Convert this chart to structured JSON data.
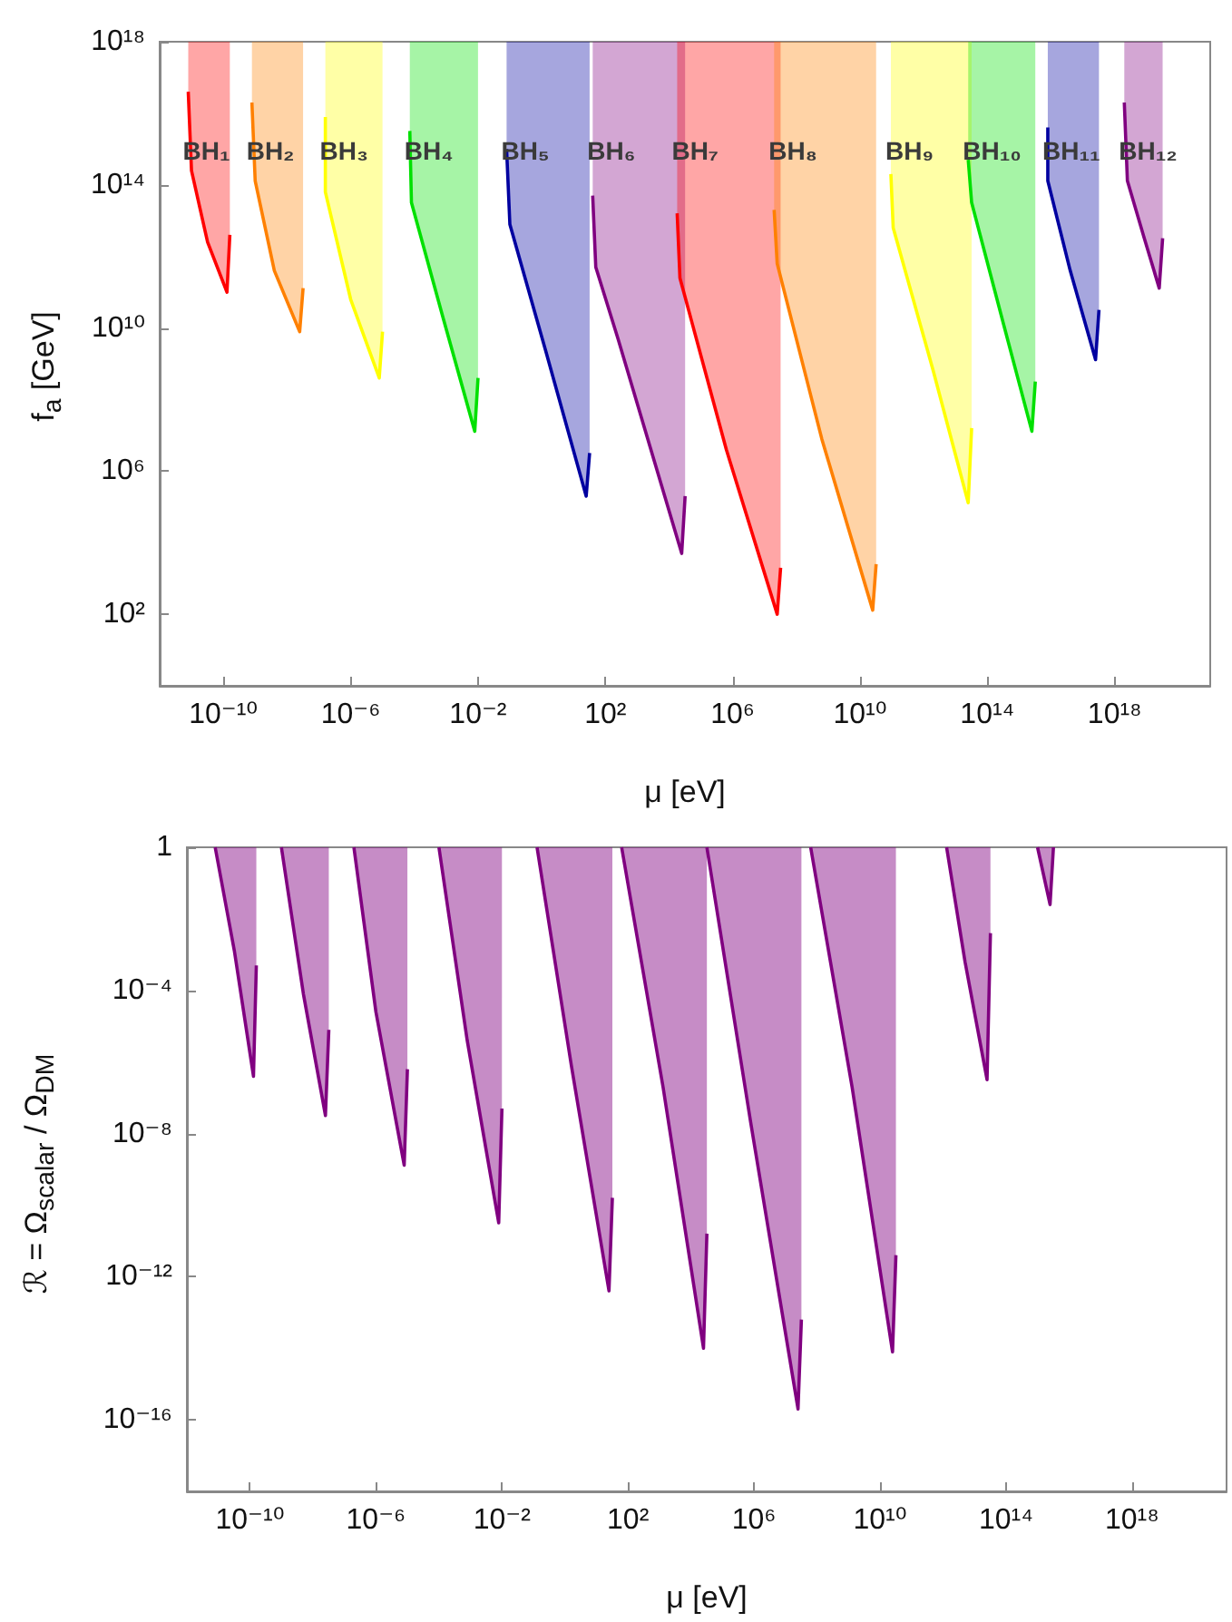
{
  "chart_data": [
    {
      "type": "line",
      "xlabel": "μ [eV]",
      "ylabel": "f$_{a}$ [GeV]",
      "log": "xy",
      "xlim": [
        1e-12,
        1e+21
      ],
      "ylim": [
        1,
        1e+18
      ],
      "grid": false,
      "marker": "none",
      "line_style": "solid",
      "xticks": [
        {
          "value": 1e-10,
          "label": "10⁻¹⁰"
        },
        {
          "value": 1e-06,
          "label": "10⁻⁶"
        },
        {
          "value": 0.01,
          "label": "10⁻²"
        },
        {
          "value": 100,
          "label": "10²"
        },
        {
          "value": 1000000.0,
          "label": "10⁶"
        },
        {
          "value": 10000000000.0,
          "label": "10¹⁰"
        },
        {
          "value": 100000000000000.0,
          "label": "10¹⁴"
        },
        {
          "value": 1e+18,
          "label": "10¹⁸"
        }
      ],
      "yticks": [
        {
          "value": 100,
          "label": "10²"
        },
        {
          "value": 1000000.0,
          "label": "10⁶"
        },
        {
          "value": 10000000000.0,
          "label": "10¹⁰"
        },
        {
          "value": 100000000000000.0,
          "label": "10¹⁴"
        },
        {
          "value": 1e+18,
          "label": "10¹⁸"
        }
      ],
      "series": [
        {
          "name": "BH₁",
          "color": "#ff0000",
          "x": [
            7.9e-12,
            1e-11,
            3.2e-11,
            1.3e-10,
            1.6e-10
          ],
          "values": [
            4e+16,
            250000000000000.0,
            2500000000000.0,
            100000000000.0,
            4000000000000.0
          ],
          "lower": [
            4e+16,
            250000000000000.0,
            2500000000000.0,
            100000000000.0,
            4000000000000.0
          ],
          "upper": [
            1e+18,
            1e+18,
            1e+18,
            1e+18,
            1e+18
          ]
        },
        {
          "name": "BH₂",
          "color": "#ff8000",
          "x": [
            7.9e-10,
            1e-09,
            4e-09,
            2.5e-08,
            3.2e-08
          ],
          "values": [
            2e+16,
            130000000000000.0,
            400000000000.0,
            7900000000.0,
            130000000000.0
          ],
          "lower": [
            2e+16,
            130000000000000.0,
            400000000000.0,
            7900000000.0,
            130000000000.0
          ],
          "upper": [
            1e+18,
            1e+18,
            1e+18,
            1e+18,
            1e+18
          ]
        },
        {
          "name": "BH₃",
          "color": "#ffff00",
          "x": [
            1.6e-07,
            1.6e-07,
            1e-06,
            7.9e-06,
            1e-05
          ],
          "values": [
            7900000000000000.0,
            63000000000000.0,
            63000000000.0,
            400000000.0,
            7900000000.0
          ],
          "lower": [
            7900000000000000.0,
            63000000000000.0,
            63000000000.0,
            400000000.0,
            7900000000.0
          ],
          "upper": [
            1e+18,
            1e+18,
            1e+18,
            1e+18,
            1e+18
          ]
        },
        {
          "name": "BH₄",
          "color": "#00e000",
          "x": [
            7.2e-05,
            8.1e-05,
            0.00079,
            0.0079,
            0.01
          ],
          "values": [
            3200000000000000.0,
            32000000000000.0,
            20000000000.0,
            13000000.0,
            400000000.0
          ],
          "lower": [
            3200000000000000.0,
            32000000000000.0,
            20000000000.0,
            13000000.0,
            400000000.0
          ],
          "upper": [
            1e+18,
            1e+18,
            1e+18,
            1e+18,
            1e+18
          ]
        },
        {
          "name": "BH₅",
          "color": "#0000a0",
          "x": [
            0.079,
            0.1,
            1.3,
            25,
            32
          ],
          "values": [
            1000000000000000.0,
            7900000000000.0,
            2500000000.0,
            200000.0,
            3200000.0
          ],
          "lower": [
            1000000000000000.0,
            7900000000000.0,
            2500000000.0,
            200000.0,
            3200000.0
          ],
          "upper": [
            1e+18,
            1e+18,
            1e+18,
            1e+18,
            1e+18
          ]
        },
        {
          "name": "BH₆",
          "color": "#800080",
          "x": [
            40,
            50,
            250,
            25000.0,
            32000.0
          ],
          "values": [
            50000000000000.0,
            500000000000.0,
            5000000000.0,
            5000.0,
            200000.0
          ],
          "lower": [
            50000000000000.0,
            500000000000.0,
            5000000000.0,
            5000.0,
            200000.0
          ],
          "upper": [
            1e+18,
            1e+18,
            1e+18,
            1e+18,
            1e+18
          ]
        },
        {
          "name": "BH₇",
          "color": "#ff0000",
          "x": [
            18000.0,
            22000.0,
            630000.0,
            25000000.0,
            32000000.0
          ],
          "values": [
            16000000000000.0,
            250000000000.0,
            4000000.0,
            100,
            2000.0
          ],
          "lower": [
            16000000000000.0,
            250000000000.0,
            4000000.0,
            100,
            2000.0
          ],
          "upper": [
            1e+18,
            1e+18,
            1e+18,
            1e+18,
            1e+18
          ]
        },
        {
          "name": "BH₈",
          "color": "#ff8000",
          "x": [
            20000000.0,
            25000000.0,
            630000000.0,
            25000000000.0,
            32000000000.0
          ],
          "values": [
            20000000000000.0,
            630000000000.0,
            7900000.0,
            130,
            2500.0
          ],
          "lower": [
            20000000000000.0,
            630000000000.0,
            7900000.0,
            130,
            2500.0
          ],
          "upper": [
            1e+18,
            1e+18,
            1e+18,
            1e+18,
            1e+18
          ]
        },
        {
          "name": "BH₉",
          "color": "#ffff00",
          "x": [
            93000000000.0,
            110000000000.0,
            2000000000000.0,
            25000000000000.0,
            32000000000000.0
          ],
          "values": [
            200000000000000.0,
            6300000000000.0,
            630000000.0,
            130000.0,
            16000000.0
          ],
          "lower": [
            200000000000000.0,
            6300000000000.0,
            630000000.0,
            130000.0,
            16000000.0
          ],
          "upper": [
            1e+18,
            1e+18,
            1e+18,
            1e+18,
            1e+18
          ]
        },
        {
          "name": "BH₁₀",
          "color": "#00e000",
          "x": [
            25000000000000.0,
            32000000000000.0,
            320000000000000.0,
            2500000000000000.0,
            3200000000000000.0
          ],
          "values": [
            500000000000000.0,
            32000000000000.0,
            13000000000.0,
            13000000.0,
            320000000.0
          ],
          "lower": [
            500000000000000.0,
            32000000000000.0,
            13000000000.0,
            13000000.0,
            320000000.0
          ],
          "upper": [
            1e+18,
            1e+18,
            1e+18,
            1e+18,
            1e+18
          ]
        },
        {
          "name": "BH₁₁",
          "color": "#0000a0",
          "x": [
            7900000000000000.0,
            7900000000000000.0,
            4e+16,
            2.5e+17,
            3.2e+17
          ],
          "values": [
            4000000000000000.0,
            130000000000000.0,
            400000000000.0,
            1300000000.0,
            32000000000.0
          ],
          "lower": [
            4000000000000000.0,
            130000000000000.0,
            400000000000.0,
            1300000000.0,
            32000000000.0
          ],
          "upper": [
            1e+18,
            1e+18,
            1e+18,
            1e+18,
            1e+18
          ]
        },
        {
          "name": "BH₁₂",
          "color": "#800080",
          "x": [
            2e+18,
            2.5e+18,
            7.9e+18,
            2.5e+19,
            3.2e+19
          ],
          "values": [
            2e+16,
            130000000000000.0,
            4000000000000.0,
            130000000000.0,
            3200000000000.0
          ],
          "lower": [
            2e+16,
            130000000000000.0,
            4000000000000.0,
            130000000000.0,
            3200000000000.0
          ],
          "upper": [
            1e+18,
            1e+18,
            1e+18,
            1e+18,
            1e+18
          ]
        }
      ]
    },
    {
      "type": "line",
      "xlabel": "μ [eV]",
      "ylabel": "ℛ = Ω$_{scalar}$ / Ω$_{DM}$",
      "log": "xy",
      "xlim": [
        1e-12,
        1e+21
      ],
      "ylim": [
        1e-18,
        1
      ],
      "grid": false,
      "marker": "none",
      "line_style": "solid",
      "xticks": [
        {
          "value": 1e-10,
          "label": "10⁻¹⁰"
        },
        {
          "value": 1e-06,
          "label": "10⁻⁶"
        },
        {
          "value": 0.01,
          "label": "10⁻²"
        },
        {
          "value": 100,
          "label": "10²"
        },
        {
          "value": 1000000.0,
          "label": "10⁶"
        },
        {
          "value": 10000000000.0,
          "label": "10¹⁰"
        },
        {
          "value": 100000000000000.0,
          "label": "10¹⁴"
        },
        {
          "value": 1e+18,
          "label": "10¹⁸"
        }
      ],
      "yticks": [
        {
          "value": 1e-16,
          "label": "10⁻¹⁶"
        },
        {
          "value": 1e-12,
          "label": "10⁻¹²"
        },
        {
          "value": 1e-08,
          "label": "10⁻⁸"
        },
        {
          "value": 0.0001,
          "label": "10⁻⁴"
        },
        1
      ],
      "series": [
        {
          "color": "#800080",
          "x": [
            7.9e-12,
            3.2e-11,
            1.3e-10,
            1.6e-10
          ],
          "values": [
            1,
            0.0013,
            4e-07,
            0.0005
          ],
          "lower": [
            1,
            0.0013,
            4e-07,
            0.0005
          ],
          "upper": [
            1,
            1,
            1,
            1
          ]
        },
        {
          "color": "#800080",
          "x": [
            1e-09,
            5e-09,
            2.5e-08,
            3.2e-08
          ],
          "values": [
            1,
            7.9e-05,
            3.2e-08,
            7.9e-06
          ],
          "lower": [
            1,
            7.9e-05,
            3.2e-08,
            7.9e-06
          ],
          "upper": [
            1,
            1,
            1,
            1
          ]
        },
        {
          "color": "#800080",
          "x": [
            2e-07,
            1e-06,
            7.9e-06,
            1e-05
          ],
          "values": [
            1,
            2.5e-05,
            1.3e-09,
            6.3e-07
          ],
          "lower": [
            1,
            2.5e-05,
            1.3e-09,
            6.3e-07
          ],
          "upper": [
            1,
            1,
            1,
            1
          ]
        },
        {
          "color": "#800080",
          "x": [
            0.0001,
            0.00079,
            0.0079,
            0.01
          ],
          "values": [
            1,
            4e-06,
            3.2e-11,
            5e-08
          ],
          "lower": [
            1,
            4e-06,
            3.2e-11,
            5e-08
          ],
          "upper": [
            1,
            1,
            1,
            1
          ]
        },
        {
          "color": "#800080",
          "x": [
            0.13,
            1.6,
            25,
            32
          ],
          "values": [
            1,
            7.9e-07,
            4e-13,
            1.6e-10
          ],
          "lower": [
            1,
            7.9e-07,
            4e-13,
            1.6e-10
          ],
          "upper": [
            1,
            1,
            1,
            1
          ]
        },
        {
          "color": "#800080",
          "x": [
            63,
            1300,
            25000.0,
            32000.0
          ],
          "values": [
            1,
            2e-07,
            1e-14,
            1.6e-11
          ],
          "lower": [
            1,
            2e-07,
            1e-14,
            1.6e-11
          ],
          "upper": [
            1,
            1,
            1,
            1
          ]
        },
        {
          "color": "#800080",
          "x": [
            32000.0,
            790000.0,
            25000000.0,
            32000000.0
          ],
          "values": [
            1,
            2e-08,
            2e-16,
            6.3e-14
          ],
          "lower": [
            1,
            2e-08,
            2e-16,
            6.3e-14
          ],
          "upper": [
            1,
            1,
            1,
            1
          ]
        },
        {
          "color": "#800080",
          "x": [
            63000000.0,
            1300000000.0,
            25000000000.0,
            32000000000.0
          ],
          "values": [
            1,
            2e-07,
            7.9e-15,
            4e-12
          ],
          "lower": [
            1,
            2e-07,
            7.9e-15,
            4e-12
          ],
          "upper": [
            1,
            1,
            1,
            1
          ]
        },
        {
          "color": "#800080",
          "x": [
            1300000000000.0,
            5000000000000.0,
            25000000000000.0,
            32000000000000.0
          ],
          "values": [
            1,
            0.00063,
            3.2e-07,
            0.004
          ],
          "lower": [
            1,
            0.00063,
            3.2e-07,
            0.004
          ],
          "upper": [
            1,
            1,
            1,
            1
          ]
        },
        {
          "color": "#800080",
          "x": [
            1000000000000000.0,
            2500000000000000.0,
            3200000000000000.0
          ],
          "values": [
            1,
            0.025,
            1
          ],
          "lower": [
            1,
            0.025,
            1
          ],
          "upper": [
            1,
            1,
            1
          ]
        }
      ]
    }
  ]
}
